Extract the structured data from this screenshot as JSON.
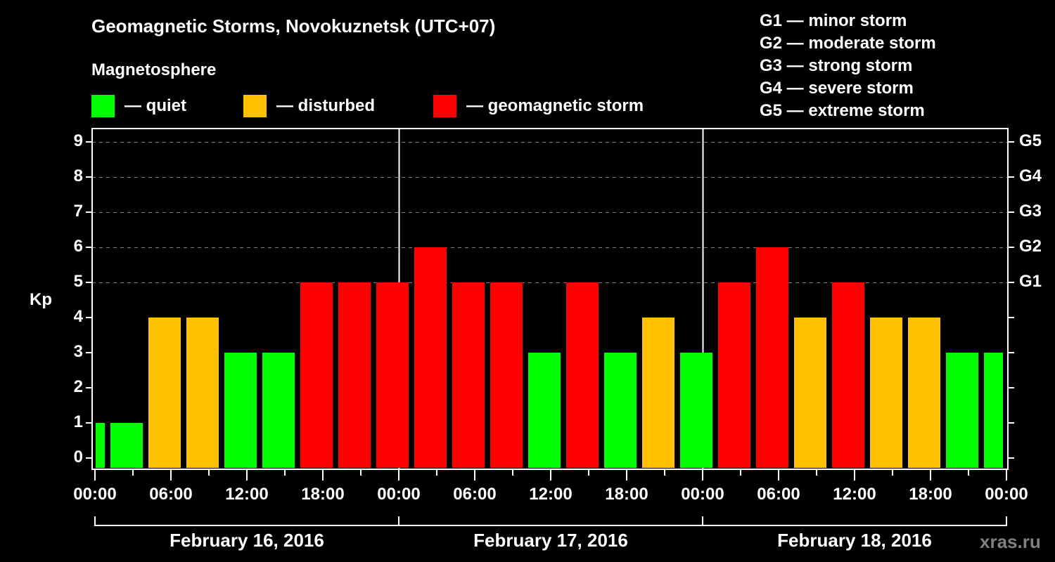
{
  "header": {
    "title": "Geomagnetic Storms, Novokuznetsk (UTC+07)",
    "subtitle": "Magnetosphere"
  },
  "legend": [
    {
      "label": "— quiet",
      "color": "#00ff00"
    },
    {
      "label": "— disturbed",
      "color": "#ffc000"
    },
    {
      "label": "— geomagnetic storm",
      "color": "#ff0000"
    }
  ],
  "g_levels": [
    "G1 — minor storm",
    "G2 — moderate storm",
    "G3 — strong storm",
    "G4 — severe storm",
    "G5 — extreme storm"
  ],
  "watermark": "xras.ru",
  "chart_data": {
    "type": "bar",
    "title": "Geomagnetic Storms, Novokuznetsk (UTC+07)",
    "ylabel": "Kp",
    "xlabel": "",
    "ylim": [
      0,
      9
    ],
    "y_ticks": [
      0,
      1,
      2,
      3,
      4,
      5,
      6,
      7,
      8,
      9
    ],
    "right_axis_ticks": [
      {
        "kp": 5,
        "label": "G1"
      },
      {
        "kp": 6,
        "label": "G2"
      },
      {
        "kp": 7,
        "label": "G3"
      },
      {
        "kp": 8,
        "label": "G4"
      },
      {
        "kp": 9,
        "label": "G5"
      }
    ],
    "x_tick_labels": [
      "00:00",
      "06:00",
      "12:00",
      "18:00",
      "00:00",
      "06:00",
      "12:00",
      "18:00",
      "00:00",
      "06:00",
      "12:00",
      "18:00",
      "00:00"
    ],
    "dates": [
      "February 16, 2016",
      "February 17, 2016",
      "February 18, 2016"
    ],
    "grid": "dashed horizontal at Kp 5-9",
    "colors": {
      "quiet": "#00ff00",
      "disturbed": "#ffc000",
      "storm": "#ff0000"
    },
    "bars": [
      {
        "start_hour": 0,
        "end_hour": 1,
        "kp": 1,
        "level": "quiet"
      },
      {
        "start_hour": 1,
        "end_hour": 4,
        "kp": 1,
        "level": "quiet"
      },
      {
        "start_hour": 4,
        "end_hour": 7,
        "kp": 4,
        "level": "disturbed"
      },
      {
        "start_hour": 7,
        "end_hour": 10,
        "kp": 4,
        "level": "disturbed"
      },
      {
        "start_hour": 10,
        "end_hour": 13,
        "kp": 3,
        "level": "quiet"
      },
      {
        "start_hour": 13,
        "end_hour": 16,
        "kp": 3,
        "level": "quiet"
      },
      {
        "start_hour": 16,
        "end_hour": 19,
        "kp": 5,
        "level": "storm"
      },
      {
        "start_hour": 19,
        "end_hour": 22,
        "kp": 5,
        "level": "storm"
      },
      {
        "start_hour": 22,
        "end_hour": 25,
        "kp": 5,
        "level": "storm"
      },
      {
        "start_hour": 25,
        "end_hour": 28,
        "kp": 6,
        "level": "storm"
      },
      {
        "start_hour": 28,
        "end_hour": 31,
        "kp": 5,
        "level": "storm"
      },
      {
        "start_hour": 31,
        "end_hour": 34,
        "kp": 5,
        "level": "storm"
      },
      {
        "start_hour": 34,
        "end_hour": 37,
        "kp": 3,
        "level": "quiet"
      },
      {
        "start_hour": 37,
        "end_hour": 40,
        "kp": 5,
        "level": "storm"
      },
      {
        "start_hour": 40,
        "end_hour": 43,
        "kp": 3,
        "level": "quiet"
      },
      {
        "start_hour": 43,
        "end_hour": 46,
        "kp": 4,
        "level": "disturbed"
      },
      {
        "start_hour": 46,
        "end_hour": 49,
        "kp": 3,
        "level": "quiet"
      },
      {
        "start_hour": 49,
        "end_hour": 52,
        "kp": 5,
        "level": "storm"
      },
      {
        "start_hour": 52,
        "end_hour": 55,
        "kp": 6,
        "level": "storm"
      },
      {
        "start_hour": 55,
        "end_hour": 58,
        "kp": 4,
        "level": "disturbed"
      },
      {
        "start_hour": 58,
        "end_hour": 61,
        "kp": 5,
        "level": "storm"
      },
      {
        "start_hour": 61,
        "end_hour": 64,
        "kp": 4,
        "level": "disturbed"
      },
      {
        "start_hour": 64,
        "end_hour": 67,
        "kp": 4,
        "level": "disturbed"
      },
      {
        "start_hour": 67,
        "end_hour": 70,
        "kp": 3,
        "level": "quiet"
      },
      {
        "start_hour": 70,
        "end_hour": 72,
        "kp": 3,
        "level": "quiet"
      }
    ]
  }
}
